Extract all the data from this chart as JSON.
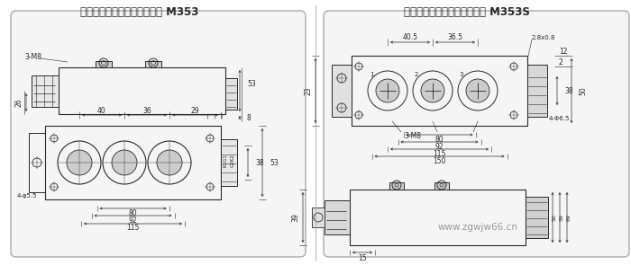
{
  "title_left": "散热形式：风冷型模块外型图 M353",
  "title_right": "散热形式：水冷型模块外型图 M353S",
  "watermark": "www.zgwjw66.cn",
  "bg_color": "#ffffff",
  "panel_color": "#f5f5f5",
  "line_color": "#2a2a2a",
  "dim_color": "#2a2a2a"
}
